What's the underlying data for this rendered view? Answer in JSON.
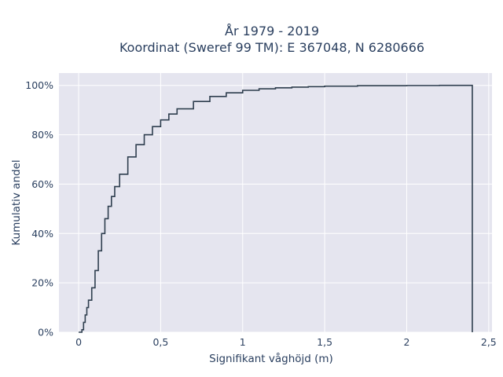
{
  "chart_data": {
    "type": "line",
    "subtype": "ecdf-step",
    "title_lines": [
      "År 1979 - 2019",
      "Koordinat (Sweref 99 TM): E 367048, N 6280666"
    ],
    "xlabel": "Signifikant våghöjd (m)",
    "ylabel": "Kumulativ andel",
    "xlim": [
      -0.12,
      2.52
    ],
    "ylim": [
      0,
      1.05
    ],
    "x_ticks": [
      {
        "value": 0,
        "label": "0"
      },
      {
        "value": 0.5,
        "label": "0,5"
      },
      {
        "value": 1,
        "label": "1"
      },
      {
        "value": 1.5,
        "label": "1,5"
      },
      {
        "value": 2,
        "label": "2"
      },
      {
        "value": 2.5,
        "label": "2,5"
      }
    ],
    "y_ticks": [
      {
        "value": 0,
        "label": "0%"
      },
      {
        "value": 0.2,
        "label": "20%"
      },
      {
        "value": 0.4,
        "label": "40%"
      },
      {
        "value": 0.6,
        "label": "60%"
      },
      {
        "value": 0.8,
        "label": "80%"
      },
      {
        "value": 1.0,
        "label": "100%"
      }
    ],
    "grid": true,
    "series": [
      {
        "color": "#2f3f4f",
        "x": [
          0.0,
          0.02,
          0.03,
          0.04,
          0.05,
          0.06,
          0.08,
          0.1,
          0.12,
          0.14,
          0.16,
          0.18,
          0.2,
          0.22,
          0.25,
          0.3,
          0.35,
          0.4,
          0.45,
          0.5,
          0.55,
          0.6,
          0.7,
          0.8,
          0.9,
          1.0,
          1.1,
          1.2,
          1.3,
          1.4,
          1.5,
          1.7,
          2.0,
          2.2,
          2.4,
          2.4
        ],
        "y": [
          0.0,
          0.01,
          0.04,
          0.07,
          0.1,
          0.13,
          0.18,
          0.25,
          0.33,
          0.4,
          0.46,
          0.51,
          0.55,
          0.59,
          0.64,
          0.71,
          0.76,
          0.8,
          0.833,
          0.86,
          0.884,
          0.905,
          0.935,
          0.955,
          0.97,
          0.98,
          0.986,
          0.99,
          0.993,
          0.995,
          0.997,
          0.999,
          0.9995,
          1.0,
          1.0,
          0.0
        ]
      }
    ]
  }
}
